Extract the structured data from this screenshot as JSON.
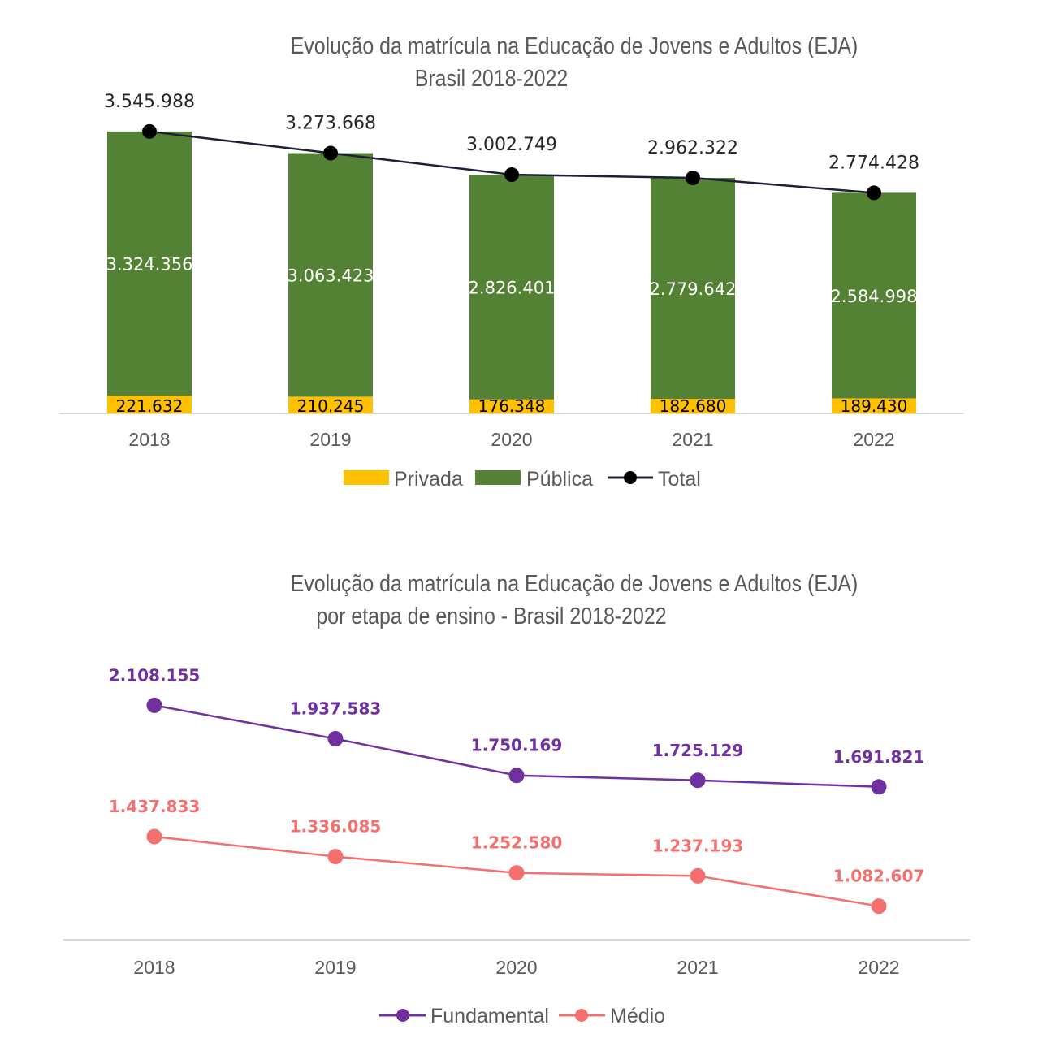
{
  "chart_data": [
    {
      "type": "bar",
      "title_line1": "Evolução da matrícula na Educação de Jovens e Adultos (EJA)",
      "title_line2": "Brasil 2018-2022",
      "categories": [
        "2018",
        "2019",
        "2020",
        "2021",
        "2022"
      ],
      "stacked": true,
      "series": [
        {
          "name": "Privada",
          "kind": "bar",
          "color": "#ffc000",
          "values": [
            221632,
            210245,
            176348,
            182680,
            189430
          ],
          "labels": [
            "221.632",
            "210.245",
            "176.348",
            "182.680",
            "189.430"
          ]
        },
        {
          "name": "Pública",
          "kind": "bar",
          "color": "#548235",
          "values": [
            3324356,
            3063423,
            2826401,
            2779642,
            2584998
          ],
          "labels": [
            "3.324.356",
            "3.063.423",
            "2.826.401",
            "2.779.642",
            "2.584.998"
          ]
        },
        {
          "name": "Total",
          "kind": "line",
          "color": "#1f1f3a",
          "values": [
            3545988,
            3273668,
            3002749,
            2962322,
            2774428
          ],
          "labels": [
            "3.545.988",
            "3.273.668",
            "3.002.749",
            "2.962.322",
            "2.774.428"
          ]
        }
      ],
      "ylim": [
        0,
        3800000
      ],
      "grid": false,
      "legend": "bottom"
    },
    {
      "type": "line",
      "title_line1": "Evolução da matrícula na Educação de Jovens e Adultos (EJA)",
      "title_line2": "por etapa de ensino - Brasil 2018-2022",
      "categories": [
        "2018",
        "2019",
        "2020",
        "2021",
        "2022"
      ],
      "series": [
        {
          "name": "Fundamental",
          "color": "#7030a0",
          "values": [
            2108155,
            1937583,
            1750169,
            1725129,
            1691821
          ],
          "labels": [
            "2.108.155",
            "1.937.583",
            "1.750.169",
            "1.725.129",
            "1.691.821"
          ]
        },
        {
          "name": "Médio",
          "color": "#f4706e",
          "values": [
            1437833,
            1336085,
            1252580,
            1237193,
            1082607
          ],
          "labels": [
            "1.437.833",
            "1.336.085",
            "1.252.580",
            "1.237.193",
            "1.082.607"
          ]
        }
      ],
      "ylim": [
        0,
        2500000
      ],
      "grid": false,
      "legend": "bottom"
    }
  ]
}
